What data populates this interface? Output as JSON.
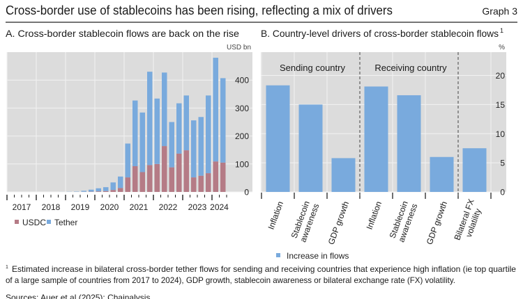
{
  "header": {
    "title": "Cross-border use of stablecoins has been rising, reflecting a mix of drivers",
    "graph_label": "Graph 3"
  },
  "colors": {
    "usdc": "#b57b86",
    "tether": "#79aadd",
    "plot_bg": "#dcdcdc",
    "grid": "#f2f2f2"
  },
  "chart_data": [
    {
      "type": "bar",
      "stacked": true,
      "title": "A. Cross-border stablecoin flows are back on the rise",
      "ylabel": "USD bn",
      "ylim": [
        0,
        500
      ],
      "yticks": [
        0,
        100,
        200,
        300,
        400
      ],
      "year_labels": [
        "2017",
        "2018",
        "2019",
        "2020",
        "2021",
        "2022",
        "2023",
        "2024"
      ],
      "categories": [
        "2017Q1",
        "2017Q2",
        "2017Q3",
        "2017Q4",
        "2018Q1",
        "2018Q2",
        "2018Q3",
        "2018Q4",
        "2019Q1",
        "2019Q2",
        "2019Q3",
        "2019Q4",
        "2020Q1",
        "2020Q2",
        "2020Q3",
        "2020Q4",
        "2021Q1",
        "2021Q2",
        "2021Q3",
        "2021Q4",
        "2022Q1",
        "2022Q2",
        "2022Q3",
        "2022Q4",
        "2023Q1",
        "2023Q2",
        "2023Q3",
        "2023Q4",
        "2024Q1",
        "2024Q2"
      ],
      "series": [
        {
          "name": "USDC",
          "values": [
            0,
            0,
            0,
            0,
            0,
            0,
            0,
            0,
            0,
            0,
            0.5,
            1,
            2,
            3,
            7,
            14,
            52,
            92,
            71,
            96,
            100,
            164,
            88,
            137,
            149,
            52,
            58,
            67,
            109,
            105
          ]
        },
        {
          "name": "Tether",
          "values": [
            0,
            0,
            0,
            0,
            0,
            0,
            0,
            0.2,
            0.5,
            1,
            3.5,
            7,
            11,
            14,
            27,
            41,
            121,
            235,
            213,
            334,
            234,
            263,
            162,
            180,
            196,
            204,
            210,
            278,
            371,
            302
          ]
        }
      ],
      "legend": [
        "USDC",
        "Tether"
      ],
      "legend_position": "bottom-left"
    },
    {
      "type": "bar",
      "title": "B. Country-level drivers of cross-border stablecoin flows",
      "title_footnote": "1",
      "ylabel": "%",
      "ylim": [
        0,
        24
      ],
      "yticks": [
        0,
        5,
        10,
        15,
        20
      ],
      "groups": [
        {
          "label": "Sending country",
          "categories": [
            "Inflation",
            "Stablecoin awareness",
            "GDP growth"
          ]
        },
        {
          "label": "Receiving country",
          "categories": [
            "Inflation",
            "Stablecoin awareness",
            "GDP growth"
          ]
        },
        {
          "label": "",
          "categories": [
            "Bilateral FX volatility"
          ]
        }
      ],
      "category_lines": [
        [
          "Inflation"
        ],
        [
          "Stablecoin",
          "awareness"
        ],
        [
          "GDP growth"
        ],
        [
          "Inflation"
        ],
        [
          "Stablecoin",
          "awareness"
        ],
        [
          "GDP growth"
        ],
        [
          "Bilateral FX",
          "volatility"
        ]
      ],
      "series": [
        {
          "name": "Increase in flows",
          "values": [
            18.3,
            15.0,
            5.8,
            18.1,
            16.6,
            6.0,
            7.5
          ]
        }
      ],
      "legend": [
        "Increase in flows"
      ],
      "legend_position": "bottom"
    }
  ],
  "footnote": {
    "marker": "1",
    "line1": "Estimated increase in bilateral cross-border tether flows for sending and receiving countries that experience high inflation (ie top quartile",
    "line2": "of a large sample of countries from 2017 to 2024), GDP growth, stablecoin awareness or bilateral exchange rate (FX) volatility."
  },
  "sources": "Sources: Auer et al (2025); Chainalysis."
}
